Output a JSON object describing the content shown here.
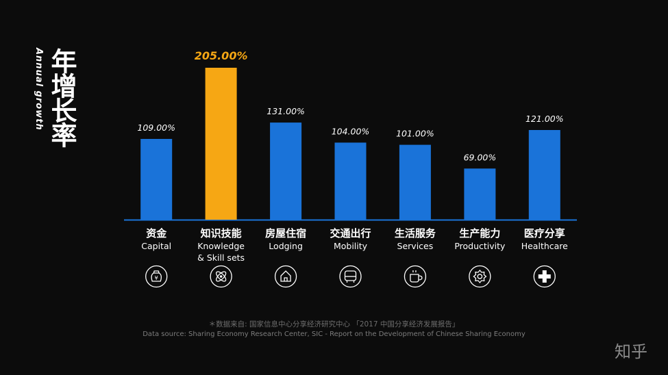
{
  "title": {
    "zh": "年增长率",
    "en": "Annual growth"
  },
  "chart_data": {
    "type": "bar",
    "categories": [
      "资金",
      "知识技能",
      "房屋住宿",
      "交通出行",
      "生活服务",
      "生产能力",
      "医疗分享"
    ],
    "categories_en": [
      "Capital",
      "Knowledge\n& Skill sets",
      "Lodging",
      "Mobility",
      "Services",
      "Productivity",
      "Healthcare"
    ],
    "values": [
      109,
      205,
      131,
      104,
      101,
      69,
      121
    ],
    "value_labels": [
      "109.00%",
      "205.00%",
      "131.00%",
      "104.00%",
      "101.00%",
      "69.00%",
      "121.00%"
    ],
    "highlight_index": 1,
    "icons": [
      "money-bag-icon",
      "atom-icon",
      "house-icon",
      "bus-icon",
      "coffee-cup-icon",
      "gear-icon",
      "medical-cross-icon"
    ],
    "ylim": [
      0,
      205
    ],
    "grid": false,
    "colors": {
      "bar": "#1a73d9",
      "highlight": "#f6a714",
      "label": "#ffffff",
      "highlight_label": "#f6a714",
      "baseline": "#1a73d9"
    }
  },
  "source": {
    "zh": "＊数据来自: 国家信息中心分享经济研究中心 「2017 中国分享经济发展报告」",
    "en": "Data source: Sharing Economy Research Center, SIC - Report on the Development of Chinese Sharing Economy"
  },
  "watermark": "知乎"
}
